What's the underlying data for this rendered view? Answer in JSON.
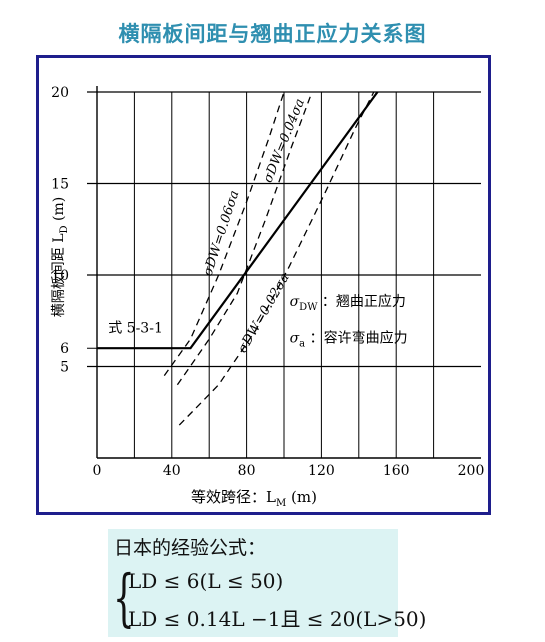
{
  "page": {
    "title": "横隔板间距与翘曲正应力关系图"
  },
  "chart_data": {
    "type": "line",
    "xlabel": "等效跨径：L",
    "xlabel_sub": "M",
    "xunit": "(m)",
    "ylabel": "横隔板间距",
    "ylabel_var": "L",
    "ylabel_sub": "D",
    "yunit": "(m)",
    "xlim": [
      0,
      200
    ],
    "ylim": [
      0,
      20
    ],
    "x_ticks": [
      0,
      40,
      80,
      120,
      160,
      200
    ],
    "y_ticks": [
      5,
      6,
      10,
      15,
      20
    ],
    "grid_x_minor": [
      20,
      40,
      60,
      80,
      100,
      120,
      140,
      160,
      180
    ],
    "grid_y_major": [
      5,
      10,
      15,
      20
    ],
    "grid_y_minor": [
      6
    ],
    "series": [
      {
        "name": "式 5-3-1",
        "style": "solid",
        "points": [
          [
            0,
            6
          ],
          [
            50,
            6
          ],
          [
            100,
            13
          ],
          [
            150,
            20
          ]
        ]
      },
      {
        "name": "σDW=0.06σa",
        "style": "dashed",
        "points": [
          [
            36,
            4.5
          ],
          [
            50,
            6.5
          ],
          [
            65,
            10
          ],
          [
            80,
            14
          ],
          [
            92,
            17.5
          ],
          [
            100,
            20
          ]
        ]
      },
      {
        "name": "σDW=0.04σa",
        "style": "dashed",
        "points": [
          [
            43,
            4
          ],
          [
            60,
            6.5
          ],
          [
            75,
            9
          ],
          [
            90,
            13
          ],
          [
            104,
            17
          ],
          [
            115,
            20
          ]
        ]
      },
      {
        "name": "σDW=0.02σa",
        "style": "dashed",
        "points": [
          [
            44,
            1.8
          ],
          [
            65,
            4
          ],
          [
            85,
            7
          ],
          [
            103,
            10.5
          ],
          [
            122,
            14.5
          ],
          [
            138,
            18
          ],
          [
            148,
            20
          ]
        ]
      }
    ],
    "annotations": {
      "formula_label": "式 5-3-1",
      "curve_006": "σDW=0.06σa",
      "curve_004": "σDW=0.04σa",
      "curve_002": "σDW=0.02σa",
      "legend_1_sym": "σ",
      "legend_1_sub": "DW",
      "legend_1_text": "：翘曲正应力",
      "legend_2_sym": "σ",
      "legend_2_sub": "a",
      "legend_2_text": "：容许弯曲应力"
    },
    "line_color": "#000000",
    "frame_color": "#1e1e8c"
  },
  "formula": {
    "title": "日本的经验公式：",
    "line1": "LD ≤ 6(L ≤ 50)",
    "line2": "LD ≤ 0.14L −1且 ≤ 20(L>50)"
  },
  "colors": {
    "title": "#2f8fb0",
    "formula_bg": "#dcf3f3"
  }
}
